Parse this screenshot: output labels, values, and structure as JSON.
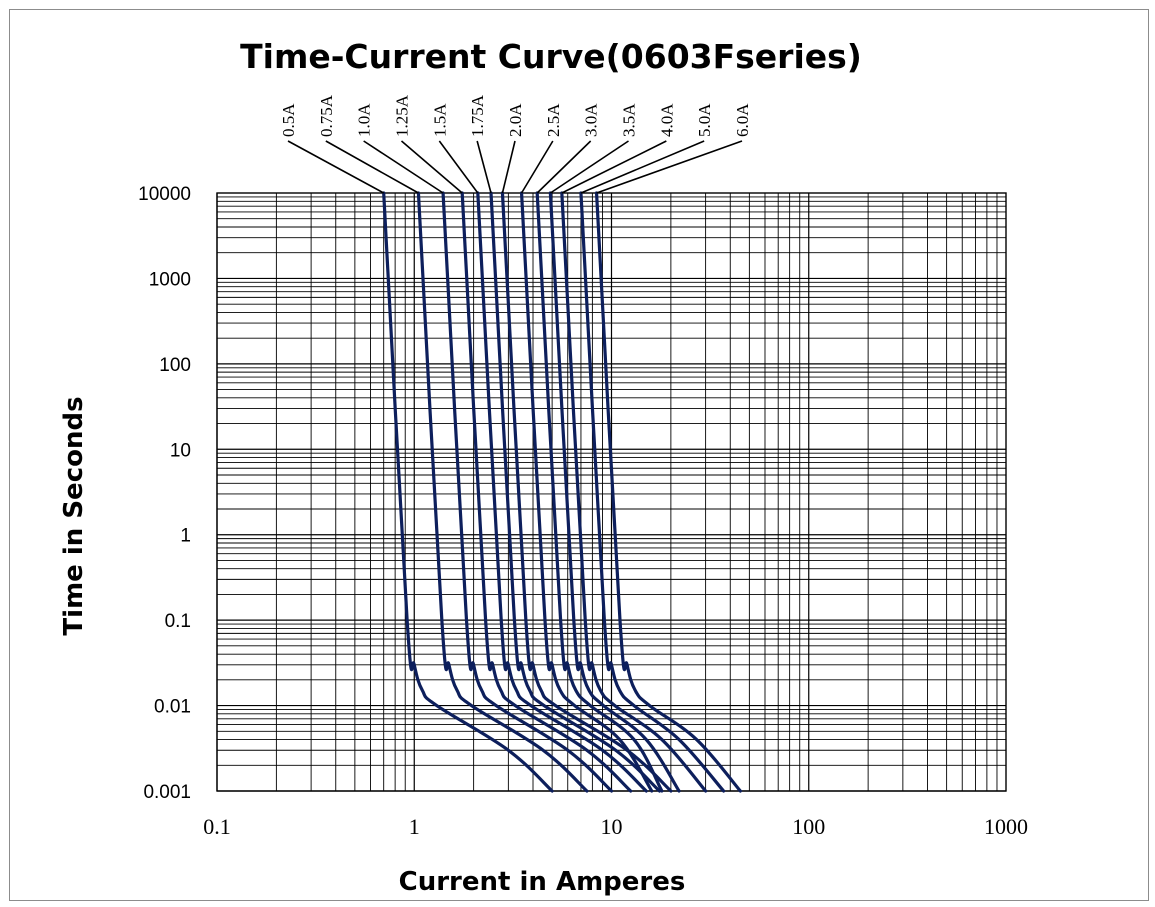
{
  "chart_data": {
    "type": "line",
    "title": "Time-Current Curve(0603Fseries)",
    "xlabel": "Current in Amperes",
    "ylabel": "Time in Seconds",
    "x_scale": "log",
    "y_scale": "log",
    "xlim": [
      0.1,
      1000
    ],
    "ylim": [
      0.001,
      10000
    ],
    "x_ticks": [
      "0.1",
      "1",
      "10",
      "100",
      "1000"
    ],
    "y_ticks": [
      "0.001",
      "0.01",
      "0.1",
      "1",
      "10",
      "100",
      "1000",
      "10000"
    ],
    "grid": true,
    "line_color": "#0d1f5c",
    "legend_placement": "top, leader lines to curve ends",
    "series": [
      {
        "name": "0.5A",
        "points": [
          [
            0.7,
            10000
          ],
          [
            0.92,
            0.1
          ],
          [
            1.0,
            0.03
          ],
          [
            1.1,
            0.015
          ],
          [
            1.3,
            0.01
          ],
          [
            3.0,
            0.003
          ],
          [
            5.0,
            0.001
          ]
        ]
      },
      {
        "name": "0.75A",
        "points": [
          [
            1.05,
            10000
          ],
          [
            1.38,
            0.1
          ],
          [
            1.5,
            0.03
          ],
          [
            1.65,
            0.015
          ],
          [
            1.95,
            0.01
          ],
          [
            4.5,
            0.003
          ],
          [
            7.5,
            0.001
          ]
        ]
      },
      {
        "name": "1.0A",
        "points": [
          [
            1.4,
            10000
          ],
          [
            1.84,
            0.1
          ],
          [
            2.0,
            0.03
          ],
          [
            2.2,
            0.015
          ],
          [
            2.6,
            0.01
          ],
          [
            6.0,
            0.003
          ],
          [
            10.0,
            0.001
          ]
        ]
      },
      {
        "name": "1.25A",
        "points": [
          [
            1.75,
            10000
          ],
          [
            2.3,
            0.1
          ],
          [
            2.5,
            0.03
          ],
          [
            2.75,
            0.015
          ],
          [
            3.25,
            0.01
          ],
          [
            7.5,
            0.003
          ],
          [
            12.5,
            0.001
          ]
        ]
      },
      {
        "name": "1.5A",
        "points": [
          [
            2.1,
            10000
          ],
          [
            2.76,
            0.1
          ],
          [
            3.0,
            0.03
          ],
          [
            3.3,
            0.015
          ],
          [
            3.9,
            0.01
          ],
          [
            9.0,
            0.003
          ],
          [
            15.0,
            0.001
          ]
        ]
      },
      {
        "name": "1.75A",
        "points": [
          [
            2.45,
            10000
          ],
          [
            3.22,
            0.1
          ],
          [
            3.5,
            0.03
          ],
          [
            3.85,
            0.015
          ],
          [
            4.55,
            0.01
          ],
          [
            10.5,
            0.003
          ],
          [
            17.5,
            0.001
          ]
        ]
      },
      {
        "name": "2.0A",
        "points": [
          [
            2.8,
            10000
          ],
          [
            3.68,
            0.1
          ],
          [
            4.0,
            0.03
          ],
          [
            4.4,
            0.015
          ],
          [
            5.2,
            0.01
          ],
          [
            12.0,
            0.003
          ],
          [
            20.0,
            0.001
          ]
        ]
      },
      {
        "name": "2.5A",
        "points": [
          [
            3.5,
            10000
          ],
          [
            4.6,
            0.1
          ],
          [
            5.0,
            0.03
          ],
          [
            5.5,
            0.015
          ],
          [
            6.5,
            0.01
          ],
          [
            11.0,
            0.004
          ],
          [
            16.0,
            0.001
          ]
        ]
      },
      {
        "name": "3.0A",
        "points": [
          [
            4.2,
            10000
          ],
          [
            5.52,
            0.1
          ],
          [
            6.0,
            0.03
          ],
          [
            6.6,
            0.015
          ],
          [
            7.8,
            0.01
          ],
          [
            13.0,
            0.004
          ],
          [
            18.0,
            0.001
          ]
        ]
      },
      {
        "name": "3.5A",
        "points": [
          [
            4.9,
            10000
          ],
          [
            6.44,
            0.1
          ],
          [
            7.0,
            0.03
          ],
          [
            7.7,
            0.015
          ],
          [
            9.1,
            0.01
          ],
          [
            15.0,
            0.004
          ],
          [
            22.0,
            0.001
          ]
        ]
      },
      {
        "name": "4.0A",
        "points": [
          [
            5.6,
            10000
          ],
          [
            7.36,
            0.1
          ],
          [
            8.0,
            0.03
          ],
          [
            8.8,
            0.015
          ],
          [
            10.4,
            0.01
          ],
          [
            18.0,
            0.004
          ],
          [
            30.0,
            0.001
          ]
        ]
      },
      {
        "name": "5.0A",
        "points": [
          [
            7.0,
            10000
          ],
          [
            9.2,
            0.1
          ],
          [
            10.0,
            0.03
          ],
          [
            11.0,
            0.015
          ],
          [
            13.0,
            0.01
          ],
          [
            22.0,
            0.004
          ],
          [
            37.0,
            0.001
          ]
        ]
      },
      {
        "name": "6.0A",
        "points": [
          [
            8.4,
            10000
          ],
          [
            11.04,
            0.1
          ],
          [
            12.0,
            0.03
          ],
          [
            13.2,
            0.015
          ],
          [
            15.6,
            0.01
          ],
          [
            27.0,
            0.004
          ],
          [
            45.0,
            0.001
          ]
        ]
      }
    ]
  }
}
